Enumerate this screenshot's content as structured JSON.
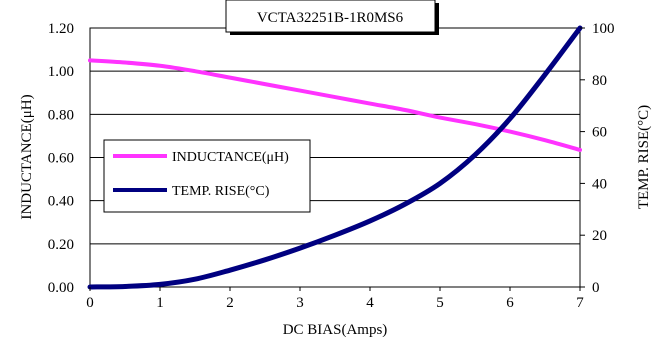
{
  "chart_data": {
    "type": "line",
    "title": "VCTA32251B-1R0MS6",
    "xlabel": "DC BIAS(Amps)",
    "ylabel_left": "INDUCTANCE(μH)",
    "ylabel_right": "TEMP. RISE(°C)",
    "xlim": [
      0,
      7
    ],
    "ylim_left": [
      0,
      1.2
    ],
    "ylim_right": [
      0,
      100
    ],
    "x_ticks": [
      "0",
      "1",
      "2",
      "3",
      "4",
      "5",
      "6",
      "7"
    ],
    "y_left_ticks": [
      "0.00",
      "0.20",
      "0.40",
      "0.60",
      "0.80",
      "1.00",
      "1.20"
    ],
    "y_right_ticks": [
      "0",
      "20",
      "40",
      "60",
      "80",
      "100"
    ],
    "grid": "horizontal",
    "legend_position": "left-middle",
    "series": [
      {
        "name": "INDUCTANCE(μH)",
        "axis": "left",
        "color": "#ff33ff",
        "x": [
          0,
          0.5,
          1,
          1.5,
          2,
          2.5,
          3,
          3.5,
          4,
          4.5,
          5,
          5.5,
          6,
          6.5,
          7
        ],
        "values": [
          1.05,
          1.04,
          1.025,
          1.0,
          0.97,
          0.94,
          0.91,
          0.88,
          0.85,
          0.82,
          0.785,
          0.755,
          0.72,
          0.68,
          0.635
        ]
      },
      {
        "name": "TEMP. RISE(°C)",
        "axis": "right",
        "color": "#000080",
        "x": [
          0,
          0.5,
          1,
          1.5,
          2,
          2.5,
          3,
          3.5,
          4,
          4.5,
          5,
          5.5,
          6,
          6.5,
          7
        ],
        "values": [
          0,
          0.2,
          1,
          3,
          6.5,
          10.5,
          15,
          20,
          25.5,
          32,
          40,
          51,
          65,
          82,
          100
        ]
      }
    ]
  }
}
